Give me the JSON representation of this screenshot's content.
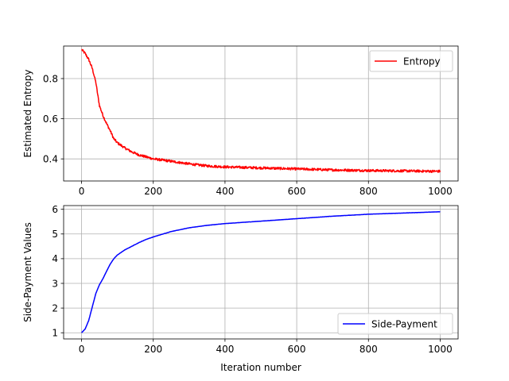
{
  "chart_data": [
    {
      "type": "line",
      "title": "",
      "xlabel": "",
      "ylabel": "Estimated Entropy",
      "xlim": [
        -50,
        1050
      ],
      "ylim": [
        0.29,
        0.962
      ],
      "x_ticks": [
        0,
        200,
        400,
        600,
        800,
        1000
      ],
      "x_tick_labels": [
        "0",
        "200",
        "400",
        "600",
        "800",
        "1000"
      ],
      "y_ticks": [
        0.4,
        0.6,
        0.8
      ],
      "y_tick_labels": [
        "0.4",
        "0.6",
        "0.8"
      ],
      "grid": true,
      "legend": {
        "placement": "upper-right"
      },
      "series": [
        {
          "name": "Entropy",
          "color": "#ff0000",
          "noise_amplitude": 0.006,
          "x": [
            0,
            5,
            10,
            20,
            30,
            40,
            45,
            50,
            55,
            60,
            70,
            80,
            90,
            100,
            120,
            140,
            160,
            180,
            200,
            250,
            300,
            350,
            400,
            500,
            600,
            700,
            800,
            900,
            1000
          ],
          "y": [
            0.945,
            0.935,
            0.925,
            0.895,
            0.85,
            0.78,
            0.72,
            0.665,
            0.64,
            0.615,
            0.575,
            0.54,
            0.5,
            0.48,
            0.455,
            0.435,
            0.42,
            0.41,
            0.4,
            0.388,
            0.375,
            0.365,
            0.36,
            0.355,
            0.35,
            0.345,
            0.342,
            0.34,
            0.338
          ]
        }
      ]
    },
    {
      "type": "line",
      "title": "",
      "xlabel": "Iteration number",
      "ylabel": "Side-Payment Values",
      "xlim": [
        -50,
        1050
      ],
      "ylim": [
        0.75,
        6.15
      ],
      "x_ticks": [
        0,
        200,
        400,
        600,
        800,
        1000
      ],
      "x_tick_labels": [
        "0",
        "200",
        "400",
        "600",
        "800",
        "1000"
      ],
      "y_ticks": [
        1,
        2,
        3,
        4,
        5,
        6
      ],
      "y_tick_labels": [
        "1",
        "2",
        "3",
        "4",
        "5",
        "6"
      ],
      "grid": true,
      "legend": {
        "placement": "lower-right"
      },
      "series": [
        {
          "name": "Side-Payment",
          "color": "#0000ff",
          "noise_amplitude": 0.004,
          "x": [
            0,
            10,
            20,
            30,
            40,
            50,
            60,
            70,
            80,
            90,
            100,
            120,
            140,
            160,
            180,
            200,
            250,
            300,
            350,
            400,
            500,
            600,
            700,
            800,
            900,
            1000
          ],
          "y": [
            1.0,
            1.15,
            1.5,
            2.05,
            2.6,
            2.95,
            3.2,
            3.5,
            3.78,
            4.0,
            4.15,
            4.35,
            4.5,
            4.65,
            4.78,
            4.88,
            5.1,
            5.25,
            5.35,
            5.42,
            5.52,
            5.62,
            5.72,
            5.8,
            5.85,
            5.9
          ]
        }
      ]
    }
  ]
}
